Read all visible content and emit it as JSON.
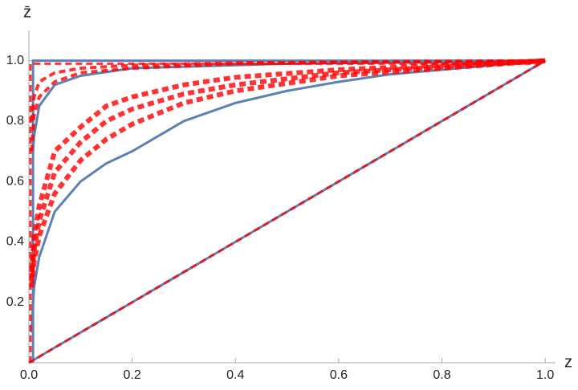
{
  "chart_data": {
    "type": "line",
    "x_label": "z",
    "y_label": "z̄",
    "xlim": [
      0,
      1.02
    ],
    "ylim": [
      0,
      1.1
    ],
    "xticks": [
      {
        "value": 0,
        "label": "0.0"
      },
      0.2,
      0.4,
      0.6,
      0.8,
      {
        "value": 1,
        "label": "1.0"
      }
    ],
    "yticks": [
      0.2,
      0.4,
      0.6,
      0.8,
      {
        "value": 1,
        "label": "1.0"
      }
    ],
    "series": [
      {
        "color": "#5e81b5",
        "dashed": false,
        "width": 3,
        "x": [
          0,
          1
        ],
        "values": [
          0,
          1
        ]
      },
      {
        "color": "#5e81b5",
        "dashed": false,
        "width": 3,
        "x": [
          0.008,
          0.008,
          1
        ],
        "values": [
          0,
          1,
          1
        ]
      },
      {
        "color": "#5e81b5",
        "dashed": false,
        "width": 3,
        "x": [
          0.008,
          0.01,
          0.02,
          0.05,
          0.1,
          0.2,
          0.5,
          1
        ],
        "values": [
          0.7,
          0.75,
          0.85,
          0.92,
          0.95,
          0.975,
          0.99,
          1
        ]
      },
      {
        "color": "#5e81b5",
        "dashed": false,
        "width": 3,
        "x": [
          0.005,
          0.01,
          0.02,
          0.05,
          0.1,
          0.15,
          0.2,
          0.3,
          0.4,
          0.5,
          0.6,
          0.7,
          0.8,
          0.9,
          1
        ],
        "values": [
          0.1,
          0.25,
          0.35,
          0.5,
          0.6,
          0.66,
          0.7,
          0.8,
          0.86,
          0.9,
          0.93,
          0.955,
          0.97,
          0.985,
          1
        ]
      },
      {
        "color": "#ff0000",
        "dashed": true,
        "width": 4,
        "x": [
          0.005,
          0.01,
          0.02,
          0.05,
          0.1,
          0.2,
          0.4,
          1
        ],
        "values": [
          0.8,
          0.88,
          0.93,
          0.96,
          0.975,
          0.985,
          0.993,
          1
        ]
      },
      {
        "color": "#ff0000",
        "dashed": true,
        "width": 4,
        "x": [
          0.005,
          0.01,
          0.02,
          0.05,
          0.1,
          0.2,
          0.4,
          1
        ],
        "values": [
          0.7,
          0.82,
          0.88,
          0.93,
          0.96,
          0.975,
          0.99,
          1
        ]
      },
      {
        "color": "#ff0000",
        "dashed": true,
        "width": 6,
        "x": [
          0.005,
          0.01,
          0.02,
          0.05,
          0.1,
          0.15,
          0.2,
          0.3,
          0.4,
          0.6,
          0.8,
          1
        ],
        "values": [
          0.3,
          0.42,
          0.52,
          0.7,
          0.78,
          0.85,
          0.88,
          0.92,
          0.945,
          0.97,
          0.985,
          1
        ]
      },
      {
        "color": "#ff0000",
        "dashed": true,
        "width": 6,
        "x": [
          0.005,
          0.01,
          0.02,
          0.05,
          0.1,
          0.15,
          0.2,
          0.3,
          0.4,
          0.6,
          0.8,
          1
        ],
        "values": [
          0.27,
          0.37,
          0.47,
          0.63,
          0.73,
          0.8,
          0.84,
          0.89,
          0.92,
          0.96,
          0.98,
          1
        ]
      },
      {
        "color": "#ff0000",
        "dashed": true,
        "width": 6,
        "x": [
          0.005,
          0.01,
          0.02,
          0.05,
          0.1,
          0.15,
          0.2,
          0.3,
          0.4,
          0.6,
          0.8,
          1
        ],
        "values": [
          0.25,
          0.33,
          0.42,
          0.56,
          0.67,
          0.74,
          0.79,
          0.86,
          0.9,
          0.95,
          0.975,
          1
        ]
      },
      {
        "color": "#ff0000",
        "dashed": true,
        "width": 3,
        "x": [
          0,
          1
        ],
        "values": [
          0,
          1
        ]
      },
      {
        "color": "#ff0000",
        "dashed": true,
        "width": 3,
        "x": [
          0.003,
          0.003,
          1
        ],
        "values": [
          0,
          0.99,
          0.99
        ]
      }
    ]
  }
}
